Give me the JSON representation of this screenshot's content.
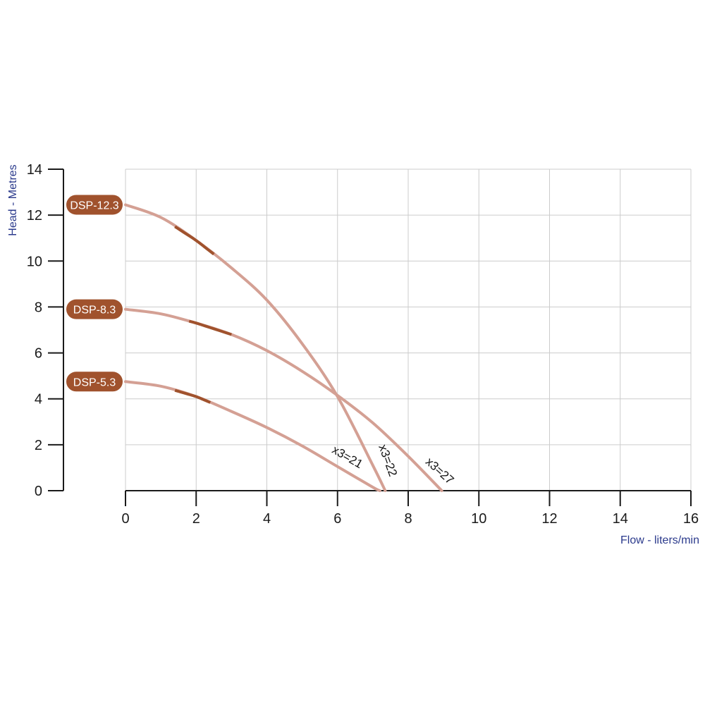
{
  "chart_data": {
    "type": "line",
    "title": "",
    "xlabel": "Flow - liters/min",
    "ylabel": "Head - Metres",
    "xlim": [
      0,
      16
    ],
    "ylim": [
      0,
      14
    ],
    "x_ticks": [
      0,
      2,
      4,
      6,
      8,
      10,
      12,
      14,
      16
    ],
    "y_ticks": [
      0,
      2,
      4,
      6,
      8,
      10,
      12,
      14
    ],
    "grid": true,
    "colors": {
      "curve": "#d4a094",
      "highlight": "#a0522d",
      "pill": "#a0522d",
      "axis": "#1a1a1a",
      "grid": "#cccccc",
      "axis_title": "#2b3a8c"
    },
    "series": [
      {
        "name": "DSP-12.3",
        "curve_label": "x3=22",
        "x": [
          0,
          1,
          2,
          3,
          4,
          5,
          6,
          7,
          7.35
        ],
        "y": [
          12.45,
          11.9,
          10.9,
          9.7,
          8.3,
          6.4,
          4.1,
          1.1,
          0
        ],
        "highlight_x": [
          1.4,
          2.5
        ]
      },
      {
        "name": "DSP-8.3",
        "curve_label": "x3=27",
        "x": [
          0,
          1,
          2,
          3,
          4,
          5,
          6,
          7,
          8,
          8.95
        ],
        "y": [
          7.9,
          7.7,
          7.3,
          6.8,
          6.1,
          5.2,
          4.15,
          2.95,
          1.5,
          0
        ],
        "highlight_x": [
          1.8,
          3.0
        ]
      },
      {
        "name": "DSP-5.3",
        "curve_label": "x3=21",
        "x": [
          0,
          1,
          2,
          3,
          4,
          5,
          6,
          7,
          7.2
        ],
        "y": [
          4.75,
          4.55,
          4.1,
          3.45,
          2.75,
          1.95,
          1.05,
          0.15,
          0
        ],
        "highlight_x": [
          1.4,
          2.4
        ]
      }
    ]
  }
}
